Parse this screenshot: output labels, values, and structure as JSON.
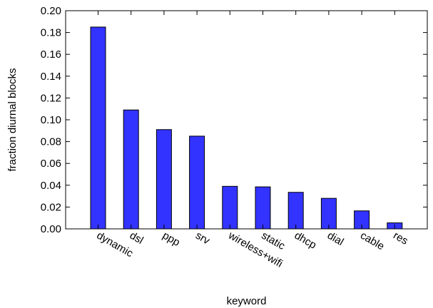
{
  "chart_data": {
    "type": "bar",
    "categories": [
      "dynamic",
      "dsl",
      "ppp",
      "srv",
      "wireless+wifi",
      "static",
      "dhcp",
      "dial",
      "cable",
      "res"
    ],
    "values": [
      0.185,
      0.109,
      0.091,
      0.085,
      0.039,
      0.0385,
      0.0335,
      0.028,
      0.0165,
      0.0055
    ],
    "xlabel": "keyword",
    "ylabel": "fraction diurnal blocks",
    "ylim": [
      0,
      0.2
    ],
    "yticks": [
      "0.00",
      "0.02",
      "0.04",
      "0.06",
      "0.08",
      "0.10",
      "0.12",
      "0.14",
      "0.16",
      "0.18",
      "0.20"
    ],
    "grid": false,
    "bar_color": "#3333ff"
  }
}
